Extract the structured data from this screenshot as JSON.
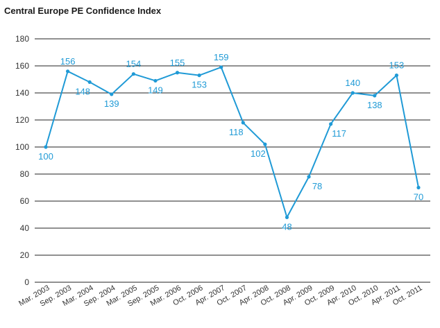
{
  "chart_data": {
    "type": "line",
    "title": "Central Europe PE Confidence Index",
    "xlabel": "",
    "ylabel": "",
    "ylim": [
      0,
      180
    ],
    "yticks": [
      0,
      20,
      40,
      60,
      80,
      100,
      120,
      140,
      160,
      180
    ],
    "grid": true,
    "legend": "none",
    "categories": [
      "Mar. 2003",
      "Sep. 2003",
      "Mar. 2004",
      "Sep. 2004",
      "Mar. 2005",
      "Sep. 2005",
      "Mar. 2006",
      "Oct. 2006",
      "Apr. 2007",
      "Oct. 2007",
      "Apr. 2008",
      "Oct. 2008",
      "Apr. 2009",
      "Oct. 2009",
      "Apr. 2010",
      "Oct. 2010",
      "Apr. 2011",
      "Oct. 2011"
    ],
    "series": [
      {
        "values": [
          100,
          156,
          148,
          139,
          154,
          149,
          155,
          153,
          159,
          118,
          102,
          48,
          78,
          117,
          140,
          138,
          153,
          70
        ],
        "color": "#1f9ad6"
      }
    ]
  }
}
